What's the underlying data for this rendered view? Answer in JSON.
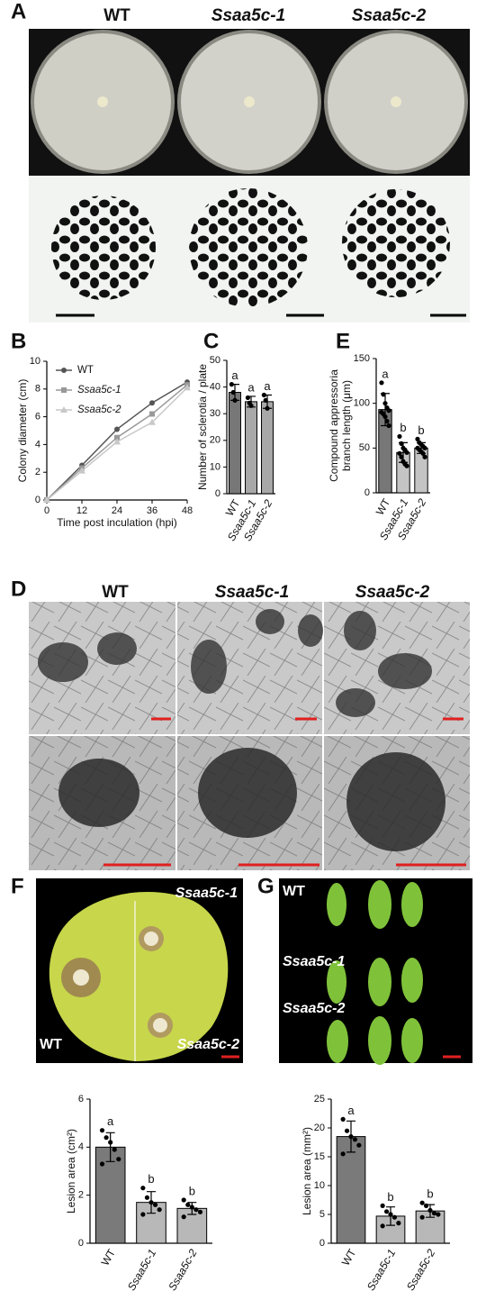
{
  "panel_labels": [
    "A",
    "B",
    "C",
    "D",
    "E",
    "F",
    "G"
  ],
  "photo_labels": {
    "A": [
      "WT",
      "Ssaa5c-1",
      "Ssaa5c-2"
    ],
    "D": [
      "WT",
      "Ssaa5c-1",
      "Ssaa5c-2"
    ],
    "F": [
      "Ssaa5c-1",
      "WT",
      "Ssaa5c-2"
    ],
    "G": [
      "WT",
      "Ssaa5c-1",
      "Ssaa5c-2"
    ]
  },
  "chart_data": [
    {
      "type": "line",
      "xlabel": "Time post inculation (hpi)",
      "ylabel": [
        "Colony diameter (cm)"
      ],
      "x": [
        0,
        12,
        24,
        36,
        48
      ],
      "xlim": [
        0,
        48
      ],
      "xticks": [
        0,
        12,
        24,
        36,
        48
      ],
      "ylim": [
        0,
        10
      ],
      "yticks": [
        0,
        2,
        4,
        6,
        8,
        10
      ],
      "series": [
        {
          "name": "WT",
          "color": "#555555",
          "values": [
            0,
            2.5,
            5.1,
            7.0,
            8.5
          ]
        },
        {
          "name": "Ssaa5c-1",
          "color": "#999999",
          "values": [
            0,
            2.3,
            4.5,
            6.2,
            8.3
          ]
        },
        {
          "name": "Ssaa5c-2",
          "color": "#c8c8c8",
          "values": [
            0,
            2.1,
            4.2,
            5.6,
            8.1
          ]
        }
      ]
    },
    {
      "type": "bar",
      "ylabel": [
        "Number of sclerotia / plate"
      ],
      "categories": [
        "WT",
        "Ssaa5c-1",
        "Ssaa5c-2"
      ],
      "colors": [
        "#777777",
        "#a8a8a8",
        "#a8a8a8"
      ],
      "values": [
        38,
        34.5,
        34.5
      ],
      "errors": [
        3,
        2,
        2.5
      ],
      "letters": [
        "a",
        "a",
        "a"
      ],
      "points": [
        [
          41,
          38,
          35
        ],
        [
          36,
          34,
          33
        ],
        [
          37,
          35,
          32
        ]
      ],
      "ylim": [
        0,
        50
      ],
      "yticks": [
        0,
        10,
        20,
        30,
        40,
        50
      ]
    },
    {
      "type": "bar",
      "ylabel": [
        "Compound appressoria",
        "branch length (μm)"
      ],
      "categories": [
        "WT",
        "Ssaa5c-1",
        "Ssaa5c-2"
      ],
      "colors": [
        "#777777",
        "#c4c4c4",
        "#c4c4c4"
      ],
      "values": [
        93,
        45,
        50
      ],
      "errors": [
        18,
        11,
        6
      ],
      "letters": [
        "a",
        "b",
        "b"
      ],
      "points": [
        [
          123,
          110,
          100,
          95,
          92,
          90,
          88,
          85,
          80,
          75
        ],
        [
          63,
          55,
          50,
          48,
          45,
          44,
          40,
          35,
          32,
          30
        ],
        [
          60,
          56,
          54,
          52,
          50,
          50,
          48,
          46,
          44,
          40
        ]
      ],
      "ylim": [
        0,
        150
      ],
      "yticks": [
        0,
        50,
        100,
        150
      ]
    },
    {
      "type": "bar",
      "ylabel": [
        "Lesion area (cm²)"
      ],
      "categories": [
        "WT",
        "Ssaa5c-1",
        "Ssaa5c-2"
      ],
      "colors": [
        "#7a7a7a",
        "#b8b8b8",
        "#b8b8b8"
      ],
      "values": [
        4.0,
        1.7,
        1.45
      ],
      "errors": [
        0.6,
        0.45,
        0.25
      ],
      "letters": [
        "a",
        "b",
        "b"
      ],
      "points": [
        [
          4.7,
          4.4,
          4.2,
          3.9,
          3.5,
          3.3
        ],
        [
          2.3,
          1.9,
          1.7,
          1.6,
          1.4,
          1.2
        ],
        [
          1.8,
          1.6,
          1.5,
          1.4,
          1.3,
          1.1
        ]
      ],
      "ylim": [
        0,
        6
      ],
      "yticks": [
        0,
        2,
        4,
        6
      ]
    },
    {
      "type": "bar",
      "ylabel": [
        "Lesion area (mm²)"
      ],
      "categories": [
        "WT",
        "Ssaa5c-1",
        "Ssaa5c-2"
      ],
      "colors": [
        "#7a7a7a",
        "#b8b8b8",
        "#b8b8b8"
      ],
      "values": [
        18.5,
        4.7,
        5.6
      ],
      "errors": [
        2.7,
        1.6,
        1.1
      ],
      "letters": [
        "a",
        "b",
        "b"
      ],
      "points": [
        [
          21.5,
          19.5,
          18.5,
          18,
          17,
          15.5
        ],
        [
          6.5,
          5.5,
          5,
          4.5,
          3.5,
          3
        ],
        [
          7,
          6.5,
          5.7,
          5.2,
          5,
          4.5
        ]
      ],
      "ylim": [
        0,
        25
      ],
      "yticks": [
        0,
        5,
        10,
        15,
        20,
        25
      ]
    }
  ]
}
